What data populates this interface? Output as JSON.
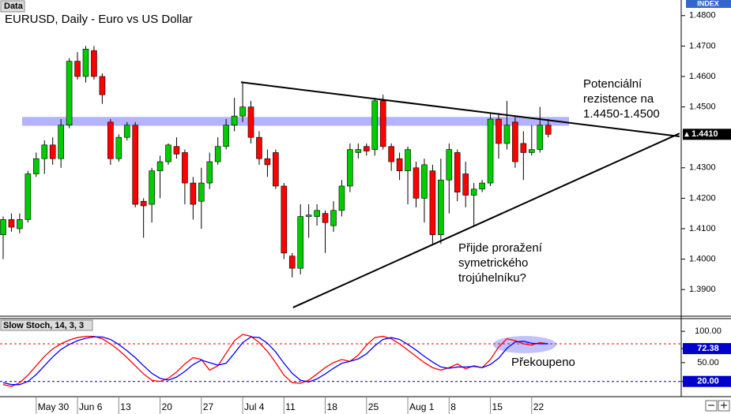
{
  "chart_data": [
    {
      "type": "candlestick",
      "label": "Data",
      "title": "EURUSD, Daily - Euro vs US Dollar",
      "axis_label": "INDEX",
      "categories": [
        null,
        null,
        null,
        null,
        "May 30",
        null,
        null,
        null,
        null,
        "Jun 6",
        null,
        null,
        null,
        null,
        "13",
        null,
        null,
        null,
        null,
        "20",
        null,
        null,
        null,
        null,
        "27",
        null,
        null,
        null,
        null,
        "Jul 4",
        null,
        null,
        null,
        null,
        "11",
        null,
        null,
        null,
        null,
        "18",
        null,
        null,
        null,
        null,
        "25",
        null,
        null,
        null,
        null,
        "Aug 1",
        null,
        null,
        null,
        null,
        "8",
        null,
        null,
        null,
        null,
        "15",
        null,
        null,
        null,
        null,
        "22",
        null,
        null
      ],
      "open": [
        1.408,
        1.413,
        1.41,
        1.413,
        1.428,
        1.433,
        1.4375,
        1.433,
        1.444,
        1.465,
        1.46,
        1.4685,
        1.46,
        1.445,
        1.433,
        1.44,
        1.444,
        1.419,
        1.418,
        1.429,
        1.432,
        1.437,
        1.435,
        1.425,
        1.419,
        1.425,
        1.432,
        1.437,
        1.444,
        1.447,
        1.45,
        1.44,
        1.433,
        1.435,
        1.424,
        1.401,
        1.397,
        1.414,
        1.414,
        1.415,
        1.411,
        1.416,
        1.424,
        1.435,
        1.437,
        1.436,
        1.452,
        1.437,
        1.433,
        1.429,
        1.43,
        1.42,
        1.429,
        1.408,
        1.426,
        1.435,
        1.428,
        1.421,
        1.423,
        1.425,
        1.446,
        1.438,
        1.445,
        1.438,
        1.435,
        1.436,
        1.444
      ],
      "high": [
        1.414,
        1.415,
        1.415,
        1.429,
        1.435,
        1.439,
        1.44,
        1.446,
        1.466,
        1.468,
        1.47,
        1.47,
        1.461,
        1.446,
        1.441,
        1.445,
        1.445,
        1.42,
        1.43,
        1.434,
        1.438,
        1.44,
        1.436,
        1.427,
        1.43,
        1.435,
        1.44,
        1.446,
        1.453,
        1.458,
        1.452,
        1.442,
        1.436,
        1.436,
        1.425,
        1.402,
        1.418,
        1.418,
        1.418,
        1.416,
        1.419,
        1.426,
        1.438,
        1.438,
        1.438,
        1.453,
        1.454,
        1.438,
        1.435,
        1.437,
        1.432,
        1.433,
        1.431,
        1.433,
        1.438,
        1.436,
        1.432,
        1.425,
        1.426,
        1.448,
        1.448,
        1.452,
        1.447,
        1.442,
        1.444,
        1.45,
        1.446
      ],
      "low": [
        1.4,
        1.409,
        1.4085,
        1.412,
        1.427,
        1.428,
        1.431,
        1.43,
        1.443,
        1.459,
        1.458,
        1.459,
        1.451,
        1.431,
        1.432,
        1.439,
        1.417,
        1.407,
        1.412,
        1.42,
        1.431,
        1.433,
        1.418,
        1.413,
        1.41,
        1.423,
        1.431,
        1.436,
        1.442,
        1.445,
        1.438,
        1.431,
        1.427,
        1.423,
        1.4,
        1.394,
        1.395,
        1.407,
        1.411,
        1.402,
        1.409,
        1.414,
        1.422,
        1.433,
        1.434,
        1.434,
        1.436,
        1.429,
        1.426,
        1.418,
        1.417,
        1.412,
        1.405,
        1.405,
        1.415,
        1.419,
        1.417,
        1.411,
        1.422,
        1.424,
        1.433,
        1.436,
        1.43,
        1.426,
        1.434,
        1.435,
        1.44
      ],
      "close": [
        1.413,
        1.4105,
        1.413,
        1.428,
        1.433,
        1.4375,
        1.433,
        1.444,
        1.465,
        1.46,
        1.469,
        1.46,
        1.454,
        1.433,
        1.44,
        1.444,
        1.418,
        1.4175,
        1.429,
        1.432,
        1.4375,
        1.4345,
        1.425,
        1.418,
        1.425,
        1.432,
        1.437,
        1.444,
        1.447,
        1.45,
        1.44,
        1.433,
        1.431,
        1.424,
        1.402,
        1.397,
        1.414,
        1.4145,
        1.416,
        1.412,
        1.416,
        1.424,
        1.436,
        1.436,
        1.4355,
        1.452,
        1.437,
        1.432,
        1.429,
        1.436,
        1.42,
        1.431,
        1.408,
        1.426,
        1.436,
        1.422,
        1.421,
        1.423,
        1.425,
        1.446,
        1.438,
        1.444,
        1.432,
        1.435,
        1.436,
        1.444,
        1.441
      ],
      "up_color": "#00cc00",
      "down_color": "#ff0000",
      "ylim": [
        1.3815,
        1.4846
      ],
      "yticks": [
        {
          "value": 1.48,
          "label": "1.4800"
        },
        {
          "value": 1.47,
          "label": "1.4700"
        },
        {
          "value": 1.46,
          "label": "1.4600"
        },
        {
          "value": 1.45,
          "label": "1.4500"
        },
        {
          "value": 1.43,
          "label": "1.4300"
        },
        {
          "value": 1.42,
          "label": "1.4200"
        },
        {
          "value": 1.41,
          "label": "1.4100"
        },
        {
          "value": 1.4,
          "label": "1.4000"
        },
        {
          "value": 1.39,
          "label": "1.3900"
        }
      ],
      "last_price": {
        "value": 1.441,
        "label": "1.4410"
      },
      "zone": {
        "from": 1.4438,
        "to": 1.4467,
        "color": "#9999ff"
      },
      "trendlines": [
        {
          "x": [
            28.8,
            81.9
          ],
          "y": [
            1.4581,
            1.4403
          ]
        },
        {
          "x": [
            35.1,
            81.9
          ],
          "y": [
            1.3841,
            1.4413
          ]
        }
      ],
      "annotations": [
        [
          "Potenciální",
          "rezistence na",
          "1.4450-1.4500"
        ],
        [
          "Přijde proražení",
          "symetrického",
          "trojúhelníku?"
        ]
      ]
    },
    {
      "type": "line",
      "title": "Slow Stoch, 14, 3, 3",
      "series": [
        {
          "color": "#ff0000",
          "values": [
            15,
            12,
            18,
            30,
            45,
            60,
            72,
            80,
            86,
            90,
            92,
            92,
            88,
            80,
            70,
            58,
            45,
            32,
            22,
            20,
            25,
            35,
            48,
            58,
            55,
            38,
            45,
            65,
            85,
            95,
            92,
            82,
            68,
            50,
            30,
            18,
            17,
            22,
            32,
            42,
            50,
            55,
            52,
            62,
            78,
            90,
            92,
            88,
            80,
            70,
            60,
            50,
            42,
            38,
            42,
            48,
            40,
            45,
            42,
            55,
            75,
            88,
            85,
            80,
            78,
            82,
            80
          ]
        },
        {
          "color": "#0000ff",
          "values": [
            18,
            15,
            15,
            20,
            31,
            45,
            59,
            71,
            79,
            85,
            89,
            91,
            91,
            87,
            79,
            69,
            58,
            45,
            33,
            25,
            22,
            27,
            36,
            47,
            54,
            50,
            46,
            49,
            65,
            82,
            91,
            90,
            81,
            67,
            49,
            33,
            22,
            19,
            24,
            32,
            41,
            49,
            52,
            56,
            64,
            77,
            87,
            90,
            87,
            79,
            70,
            60,
            51,
            43,
            41,
            43,
            43,
            44,
            42,
            47,
            57,
            73,
            83,
            84,
            81,
            80,
            80
          ]
        }
      ],
      "ylim": [
        -3,
        119
      ],
      "yticks": [
        {
          "value": 100,
          "label": "100.00"
        },
        {
          "value": 72.38,
          "label": "72.38"
        },
        {
          "value": 50,
          "label": "50.00"
        },
        {
          "value": 20,
          "label": "20.00"
        }
      ],
      "levels": [
        {
          "value": 80,
          "color": "#ff0000"
        },
        {
          "value": 20,
          "color": "#0000aa"
        }
      ],
      "annotation": "Překoupeno"
    }
  ]
}
